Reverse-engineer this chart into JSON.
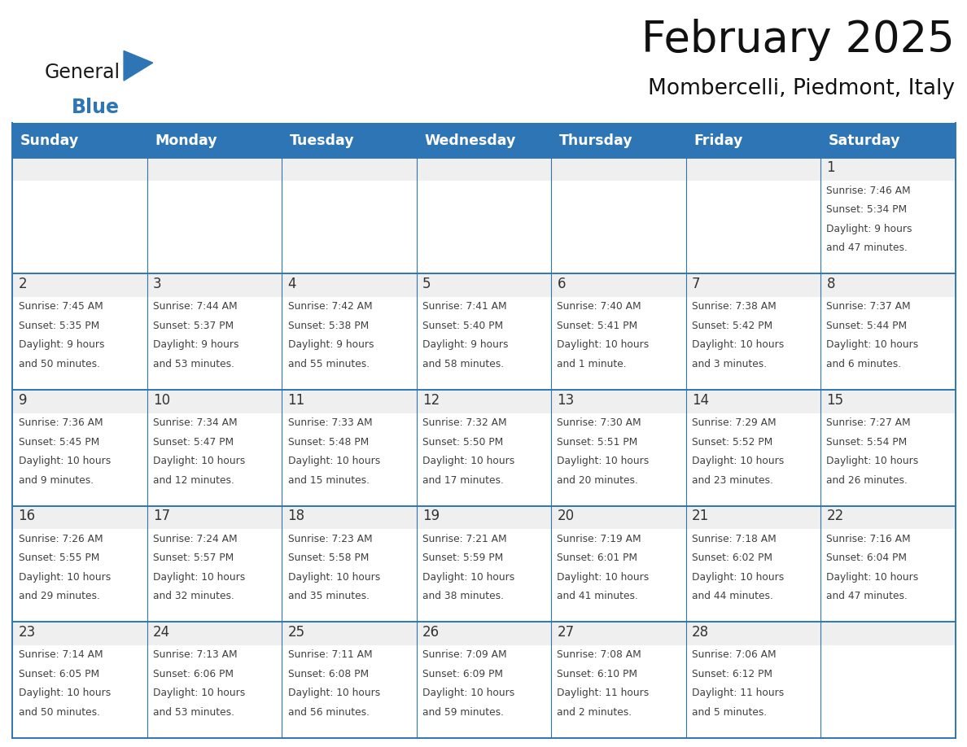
{
  "title": "February 2025",
  "subtitle": "Mombercelli, Piedmont, Italy",
  "header_bg": "#2E75B6",
  "header_text_color": "#FFFFFF",
  "cell_bg": "#FFFFFF",
  "cell_day_bg": "#EFEFEF",
  "cell_line_color": "#2E75B6",
  "day_number_color": "#333333",
  "cell_text_color": "#404040",
  "days_of_week": [
    "Sunday",
    "Monday",
    "Tuesday",
    "Wednesday",
    "Thursday",
    "Friday",
    "Saturday"
  ],
  "logo_general_color": "#1a1a1a",
  "logo_blue_color": "#2E75B6",
  "calendar_data": [
    [
      null,
      null,
      null,
      null,
      null,
      null,
      {
        "day": 1,
        "sunrise": "7:46 AM",
        "sunset": "5:34 PM",
        "daylight": "9 hours and 47 minutes."
      }
    ],
    [
      {
        "day": 2,
        "sunrise": "7:45 AM",
        "sunset": "5:35 PM",
        "daylight": "9 hours and 50 minutes."
      },
      {
        "day": 3,
        "sunrise": "7:44 AM",
        "sunset": "5:37 PM",
        "daylight": "9 hours and 53 minutes."
      },
      {
        "day": 4,
        "sunrise": "7:42 AM",
        "sunset": "5:38 PM",
        "daylight": "9 hours and 55 minutes."
      },
      {
        "day": 5,
        "sunrise": "7:41 AM",
        "sunset": "5:40 PM",
        "daylight": "9 hours and 58 minutes."
      },
      {
        "day": 6,
        "sunrise": "7:40 AM",
        "sunset": "5:41 PM",
        "daylight": "10 hours and 1 minute."
      },
      {
        "day": 7,
        "sunrise": "7:38 AM",
        "sunset": "5:42 PM",
        "daylight": "10 hours and 3 minutes."
      },
      {
        "day": 8,
        "sunrise": "7:37 AM",
        "sunset": "5:44 PM",
        "daylight": "10 hours and 6 minutes."
      }
    ],
    [
      {
        "day": 9,
        "sunrise": "7:36 AM",
        "sunset": "5:45 PM",
        "daylight": "10 hours and 9 minutes."
      },
      {
        "day": 10,
        "sunrise": "7:34 AM",
        "sunset": "5:47 PM",
        "daylight": "10 hours and 12 minutes."
      },
      {
        "day": 11,
        "sunrise": "7:33 AM",
        "sunset": "5:48 PM",
        "daylight": "10 hours and 15 minutes."
      },
      {
        "day": 12,
        "sunrise": "7:32 AM",
        "sunset": "5:50 PM",
        "daylight": "10 hours and 17 minutes."
      },
      {
        "day": 13,
        "sunrise": "7:30 AM",
        "sunset": "5:51 PM",
        "daylight": "10 hours and 20 minutes."
      },
      {
        "day": 14,
        "sunrise": "7:29 AM",
        "sunset": "5:52 PM",
        "daylight": "10 hours and 23 minutes."
      },
      {
        "day": 15,
        "sunrise": "7:27 AM",
        "sunset": "5:54 PM",
        "daylight": "10 hours and 26 minutes."
      }
    ],
    [
      {
        "day": 16,
        "sunrise": "7:26 AM",
        "sunset": "5:55 PM",
        "daylight": "10 hours and 29 minutes."
      },
      {
        "day": 17,
        "sunrise": "7:24 AM",
        "sunset": "5:57 PM",
        "daylight": "10 hours and 32 minutes."
      },
      {
        "day": 18,
        "sunrise": "7:23 AM",
        "sunset": "5:58 PM",
        "daylight": "10 hours and 35 minutes."
      },
      {
        "day": 19,
        "sunrise": "7:21 AM",
        "sunset": "5:59 PM",
        "daylight": "10 hours and 38 minutes."
      },
      {
        "day": 20,
        "sunrise": "7:19 AM",
        "sunset": "6:01 PM",
        "daylight": "10 hours and 41 minutes."
      },
      {
        "day": 21,
        "sunrise": "7:18 AM",
        "sunset": "6:02 PM",
        "daylight": "10 hours and 44 minutes."
      },
      {
        "day": 22,
        "sunrise": "7:16 AM",
        "sunset": "6:04 PM",
        "daylight": "10 hours and 47 minutes."
      }
    ],
    [
      {
        "day": 23,
        "sunrise": "7:14 AM",
        "sunset": "6:05 PM",
        "daylight": "10 hours and 50 minutes."
      },
      {
        "day": 24,
        "sunrise": "7:13 AM",
        "sunset": "6:06 PM",
        "daylight": "10 hours and 53 minutes."
      },
      {
        "day": 25,
        "sunrise": "7:11 AM",
        "sunset": "6:08 PM",
        "daylight": "10 hours and 56 minutes."
      },
      {
        "day": 26,
        "sunrise": "7:09 AM",
        "sunset": "6:09 PM",
        "daylight": "10 hours and 59 minutes."
      },
      {
        "day": 27,
        "sunrise": "7:08 AM",
        "sunset": "6:10 PM",
        "daylight": "11 hours and 2 minutes."
      },
      {
        "day": 28,
        "sunrise": "7:06 AM",
        "sunset": "6:12 PM",
        "daylight": "11 hours and 5 minutes."
      },
      null
    ]
  ],
  "figsize": [
    11.88,
    9.18
  ],
  "dpi": 100
}
